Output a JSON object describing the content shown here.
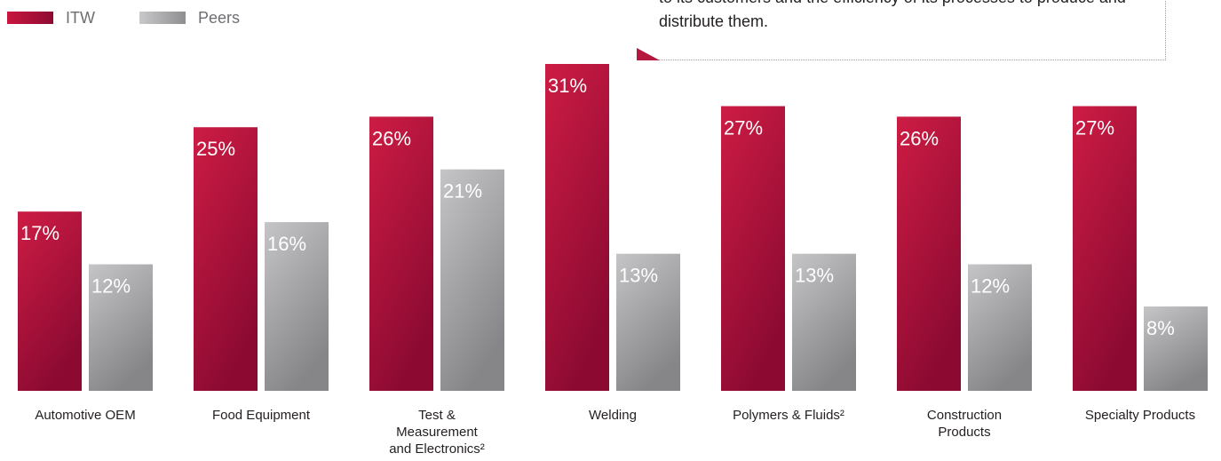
{
  "legend": {
    "itw_label": "ITW",
    "peers_label": "Peers"
  },
  "callout": {
    "text": "to its customers and the efficiency of its processes to produce and distribute them."
  },
  "colors": {
    "itw": "#b5173f",
    "peers": "#a7a7a9",
    "category_text": "#231f20",
    "legend_text": "#6d6e71"
  },
  "chart_data": {
    "type": "bar",
    "categories": [
      "Automotive OEM",
      "Food Equipment",
      "Test & Measurement and Electronics²",
      "Welding",
      "Polymers & Fluids²",
      "Construction Products",
      "Specialty Products"
    ],
    "series": [
      {
        "name": "ITW",
        "values": [
          17,
          25,
          26,
          31,
          27,
          26,
          27
        ]
      },
      {
        "name": "Peers",
        "values": [
          12,
          16,
          21,
          13,
          13,
          12,
          8
        ]
      }
    ],
    "value_labels": {
      "ITW": [
        "17%",
        "25%",
        "26%",
        "31%",
        "27%",
        "26%",
        "27%"
      ],
      "Peers": [
        "12%",
        "16%",
        "21%",
        "13%",
        "13%",
        "12%",
        "8%"
      ]
    },
    "category_label_lines": [
      [
        "Automotive OEM"
      ],
      [
        "Food Equipment"
      ],
      [
        "Test &",
        "Measurement",
        "and Electronics²"
      ],
      [
        "Welding"
      ],
      [
        "Polymers & Fluids²"
      ],
      [
        "Construction",
        "Products"
      ],
      [
        "Specialty Products"
      ]
    ],
    "title": "",
    "xlabel": "",
    "ylabel": "",
    "ylim": [
      0,
      31
    ],
    "grid": false,
    "legend_position": "top-left"
  }
}
